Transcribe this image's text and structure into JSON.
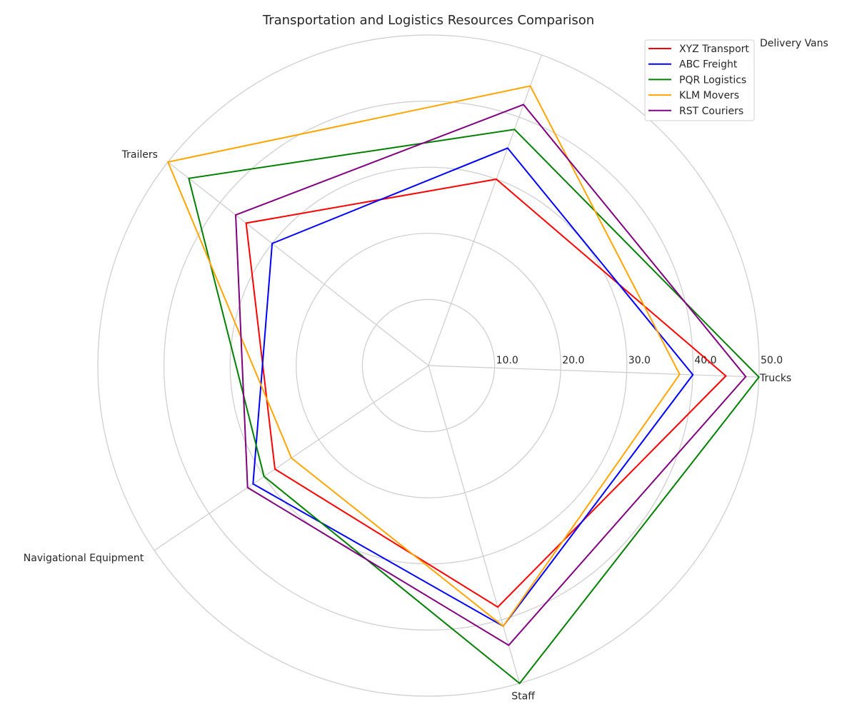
{
  "chart_data": {
    "type": "radar",
    "title": "Transportation and Logistics Resources Comparison",
    "categories": [
      "Trucks",
      "Delivery Vans",
      "Trailers",
      "Navigational Equipment",
      "Staff"
    ],
    "rlim": [
      0,
      50
    ],
    "r_ticks": [
      10,
      20,
      30,
      40,
      50
    ],
    "r_tick_labels": [
      "10.0",
      "20.0",
      "30.0",
      "40.0",
      "50.0"
    ],
    "grid": true,
    "legend_position": "top-right",
    "series": [
      {
        "name": "XYZ Transport",
        "color": "#ff0000",
        "values": [
          45,
          30,
          35,
          28,
          38
        ]
      },
      {
        "name": "ABC Freight",
        "color": "#0000ff",
        "values": [
          40,
          35,
          30,
          32,
          41
        ]
      },
      {
        "name": "PQR Logistics",
        "color": "#008000",
        "values": [
          50,
          38,
          46,
          30,
          50
        ]
      },
      {
        "name": "KLM Movers",
        "color": "#ffa500",
        "values": [
          38,
          45,
          50,
          25,
          41
        ]
      },
      {
        "name": "RST Couriers",
        "color": "#800080",
        "values": [
          48,
          42,
          37,
          33,
          44
        ]
      }
    ]
  },
  "colors": {
    "grid": "#cccccc",
    "text": "#262626",
    "background": "#ffffff"
  }
}
